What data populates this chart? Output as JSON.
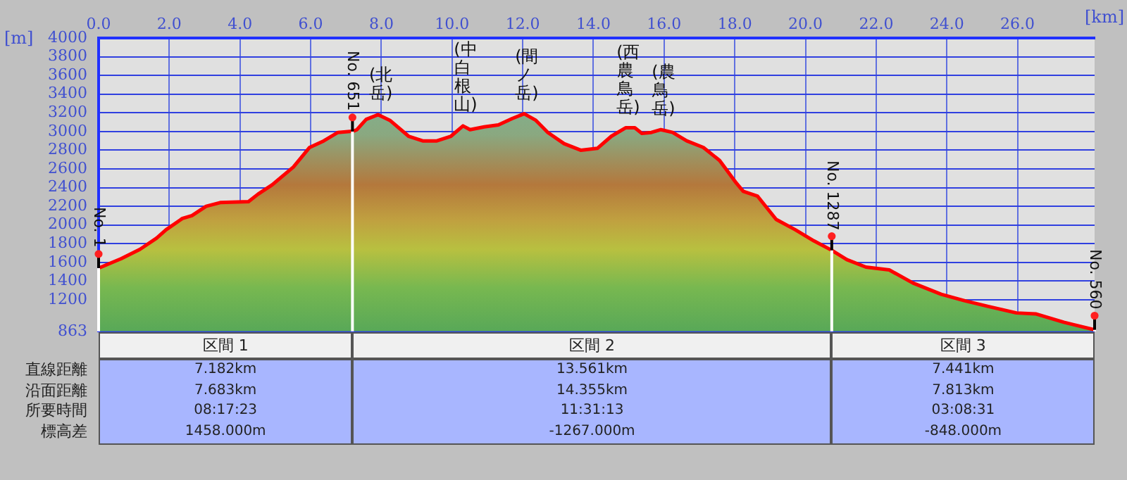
{
  "chart_data": {
    "type": "area",
    "xlabel": "[km]",
    "ylabel": "[m]",
    "x": [
      0,
      0.64,
      1.17,
      1.64,
      1.91,
      2.37,
      2.64,
      3.04,
      3.44,
      4.24,
      4.51,
      4.91,
      5.51,
      5.97,
      6.37,
      6.77,
      7.11,
      7.182,
      7.31,
      7.57,
      7.91,
      8.24,
      8.77,
      9.17,
      9.57,
      9.97,
      10.31,
      10.51,
      10.91,
      11.31,
      11.71,
      12.04,
      12.37,
      12.71,
      13.17,
      13.64,
      14.11,
      14.51,
      14.91,
      15.17,
      15.37,
      15.64,
      15.91,
      16.24,
      16.64,
      17.11,
      17.57,
      18.04,
      18.24,
      18.64,
      19.17,
      19.71,
      20.24,
      20.743,
      21.17,
      21.71,
      22.37,
      23.04,
      23.84,
      24.51,
      25.17,
      25.97,
      26.51,
      27.31,
      28.18
    ],
    "series": [
      {
        "color": "#ff0000",
        "values": [
          1540,
          1640,
          1740,
          1860,
          1950,
          2070,
          2100,
          2200,
          2240,
          2250,
          2330,
          2430,
          2620,
          2830,
          2900,
          2990,
          3000,
          3000,
          3020,
          3130,
          3180,
          3120,
          2950,
          2900,
          2900,
          2950,
          3060,
          3020,
          3050,
          3070,
          3140,
          3190,
          3120,
          2990,
          2870,
          2800,
          2820,
          2950,
          3040,
          3040,
          2980,
          2990,
          3020,
          2990,
          2900,
          2830,
          2690,
          2450,
          2360,
          2310,
          2060,
          1950,
          1830,
          1730,
          1630,
          1550,
          1520,
          1380,
          1260,
          1190,
          1130,
          1060,
          1050,
          960,
          880
        ]
      }
    ],
    "xlim": [
      0,
      28.18
    ],
    "xticks": [
      {
        "value": 0,
        "label": "0.0"
      },
      {
        "value": 2,
        "label": "2.0"
      },
      {
        "value": 4,
        "label": "4.0"
      },
      {
        "value": 6,
        "label": "6.0"
      },
      {
        "value": 8,
        "label": "8.0"
      },
      {
        "value": 10,
        "label": "10.0"
      },
      {
        "value": 12,
        "label": "12.0"
      },
      {
        "value": 14,
        "label": "14.0"
      },
      {
        "value": 16,
        "label": "16.0"
      },
      {
        "value": 18,
        "label": "18.0"
      },
      {
        "value": 20,
        "label": "20.0"
      },
      {
        "value": 22,
        "label": "22.0"
      },
      {
        "value": 24,
        "label": "24.0"
      },
      {
        "value": 26,
        "label": "26.0"
      }
    ],
    "ylim": [
      863,
      4000
    ],
    "yticks": [
      863,
      1200,
      1400,
      1600,
      1800,
      2000,
      2200,
      2400,
      2600,
      2800,
      3000,
      3200,
      3400,
      3600,
      3800,
      4000
    ],
    "grid": true,
    "ref_lines": [
      {
        "axis": "x",
        "value": 0,
        "label": "No. 1",
        "color": "#ffffff"
      },
      {
        "axis": "x",
        "value": 7.182,
        "label": "No. 651",
        "color": "#ffffff"
      },
      {
        "axis": "x",
        "value": 20.743,
        "label": "No. 1287",
        "color": "#ffffff"
      },
      {
        "axis": "x",
        "value": 28.18,
        "label": "No. 560",
        "color": "#ffffff"
      }
    ],
    "annotations": [
      {
        "text": "(北岳)",
        "x": 7.91,
        "y": 3180
      },
      {
        "text": "(中白根山)",
        "x": 10.31,
        "y": 3060
      },
      {
        "text": "(間ノ岳)",
        "x": 12.04,
        "y": 3190
      },
      {
        "text": "(西農鳥岳)",
        "x": 14.91,
        "y": 3040
      },
      {
        "text": "(農鳥岳)",
        "x": 15.91,
        "y": 3020
      },
      "区間 1",
      "区間 2",
      "区間 3",
      "直線距離",
      "7.182km",
      "13.561km",
      "7.441km",
      "沿面距離",
      "7.683km",
      "14.355km",
      "7.813km",
      "所要時間",
      "08:17:23",
      "11:31:13",
      "03:08:31",
      "標高差",
      "1458.000m",
      "-1267.000m",
      "-848.000m"
    ]
  }
}
